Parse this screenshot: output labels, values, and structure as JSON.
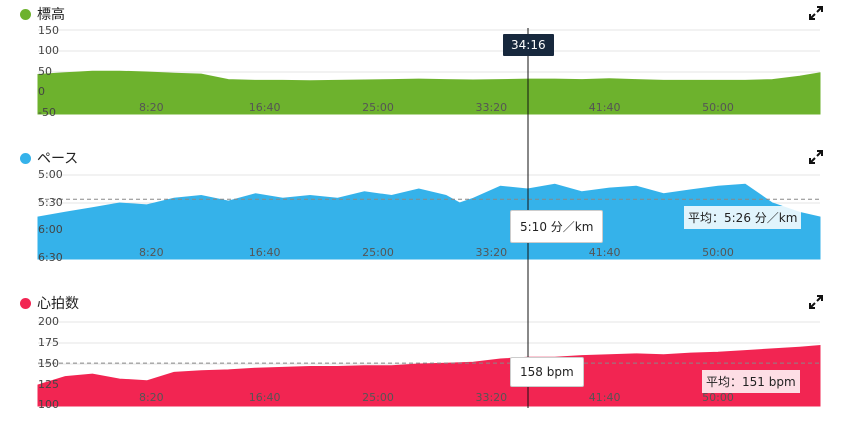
{
  "colors": {
    "elevation": "#6db22d",
    "pace": "#35b2ea",
    "heart": "#f22552",
    "grid": "#e6e6e6",
    "avg_line": "#888888"
  },
  "x_ticks": [
    "8:20",
    "16:40",
    "25:00",
    "33:20",
    "41:40",
    "50:00"
  ],
  "cursor": {
    "time_label": "34:16"
  },
  "elevation": {
    "title": "標高",
    "icon": "expand-icon",
    "y_ticks": [
      "150",
      "100",
      "50",
      "0",
      "-50"
    ]
  },
  "pace": {
    "title": "ペース",
    "icon": "expand-icon",
    "y_ticks": [
      "5:00",
      "5:30",
      "6:00",
      "6:30"
    ],
    "tooltip": "5:10 分／km",
    "avg_label": "平均：5:26 分／km"
  },
  "heart": {
    "title": "心拍数",
    "icon": "expand-icon",
    "y_ticks": [
      "200",
      "175",
      "150",
      "125",
      "100"
    ],
    "tooltip": "158 bpm",
    "avg_label": "平均：151 bpm"
  },
  "chart_data": [
    {
      "type": "area",
      "title": "標高",
      "x_unit": "minutes",
      "ylim": [
        -50,
        150
      ],
      "x": [
        0,
        2,
        4,
        6,
        8,
        10,
        12,
        14,
        16,
        18,
        20,
        22,
        24,
        26,
        28,
        30,
        32,
        34,
        36,
        38,
        40,
        42,
        44,
        46,
        48,
        50,
        52,
        54,
        56,
        57.5
      ],
      "values": [
        44,
        48,
        52,
        52,
        50,
        47,
        45,
        32,
        30,
        30,
        29,
        30,
        31,
        32,
        33,
        32,
        31,
        32,
        33,
        33,
        32,
        34,
        32,
        30,
        30,
        30,
        30,
        32,
        40,
        48
      ]
    },
    {
      "type": "area",
      "title": "ペース",
      "x_unit": "minutes",
      "y_unit": "seconds per km (inverted axis)",
      "ylim": [
        300,
        390
      ],
      "average": 326,
      "x": [
        0,
        2,
        4,
        6,
        8,
        10,
        12,
        14,
        16,
        18,
        20,
        22,
        24,
        26,
        28,
        30,
        31,
        32,
        34,
        36,
        38,
        40,
        42,
        44,
        46,
        48,
        50,
        52,
        54,
        56,
        57.5
      ],
      "values": [
        345,
        340,
        335,
        330,
        332,
        325,
        322,
        328,
        320,
        325,
        322,
        325,
        318,
        322,
        315,
        322,
        330,
        325,
        312,
        315,
        310,
        318,
        314,
        312,
        320,
        316,
        312,
        310,
        330,
        340,
        345
      ]
    },
    {
      "type": "area",
      "title": "心拍数",
      "x_unit": "minutes",
      "ylim": [
        100,
        200
      ],
      "average": 151,
      "x": [
        0,
        2,
        4,
        6,
        8,
        10,
        12,
        14,
        16,
        18,
        20,
        22,
        24,
        26,
        28,
        30,
        32,
        34,
        36,
        38,
        40,
        42,
        44,
        46,
        48,
        50,
        52,
        54,
        56,
        57.5
      ],
      "values": [
        125,
        135,
        138,
        132,
        130,
        140,
        142,
        143,
        145,
        146,
        147,
        147,
        148,
        148,
        150,
        151,
        152,
        156,
        158,
        158,
        160,
        161,
        162,
        161,
        163,
        164,
        166,
        168,
        170,
        172
      ]
    }
  ]
}
